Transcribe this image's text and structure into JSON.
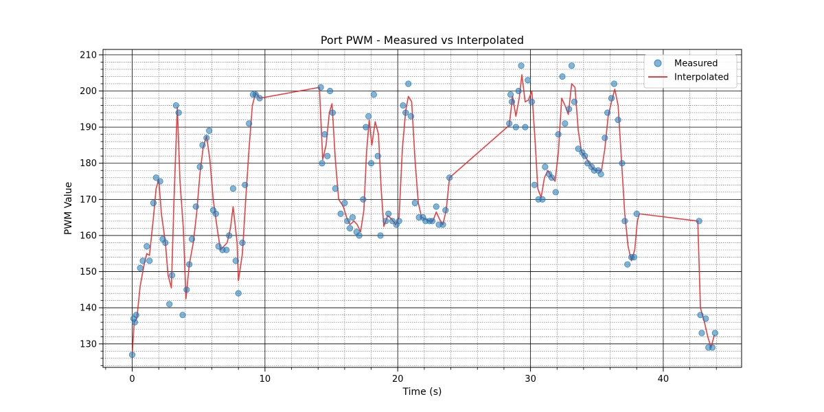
{
  "chart_data": {
    "type": "scatter+line",
    "title": "Port PWM - Measured vs Interpolated",
    "xlabel": "Time (s)",
    "ylabel": "PWM Value",
    "xlim": [
      -2.2,
      45.9
    ],
    "ylim": [
      123.5,
      211.5
    ],
    "xticks": [
      0,
      10,
      20,
      30,
      40
    ],
    "yticks": [
      130,
      140,
      150,
      160,
      170,
      180,
      190,
      200,
      210
    ],
    "x_minor_step": 2,
    "y_minor_step": 2,
    "grid": true,
    "legend_position": "top-right",
    "colors": {
      "measured": "#1f77b4",
      "interpolated": "#e8292b"
    },
    "series": [
      {
        "name": "Measured",
        "kind": "scatter",
        "points": [
          [
            0.0,
            127
          ],
          [
            0.1,
            137
          ],
          [
            0.2,
            136
          ],
          [
            0.3,
            138
          ],
          [
            0.6,
            151
          ],
          [
            0.8,
            153
          ],
          [
            1.1,
            157
          ],
          [
            1.3,
            153
          ],
          [
            1.6,
            169
          ],
          [
            1.8,
            176
          ],
          [
            2.1,
            175
          ],
          [
            2.3,
            159
          ],
          [
            2.5,
            158
          ],
          [
            2.8,
            141
          ],
          [
            3.0,
            149
          ],
          [
            3.3,
            196
          ],
          [
            3.5,
            194
          ],
          [
            3.8,
            138
          ],
          [
            4.1,
            145
          ],
          [
            4.3,
            152
          ],
          [
            4.5,
            159
          ],
          [
            4.8,
            168
          ],
          [
            5.1,
            179
          ],
          [
            5.3,
            185
          ],
          [
            5.6,
            187
          ],
          [
            5.8,
            189
          ],
          [
            6.1,
            167
          ],
          [
            6.3,
            166
          ],
          [
            6.5,
            157
          ],
          [
            6.8,
            156
          ],
          [
            7.1,
            156
          ],
          [
            7.3,
            160
          ],
          [
            7.6,
            173
          ],
          [
            7.8,
            153
          ],
          [
            8.0,
            144
          ],
          [
            8.3,
            158
          ],
          [
            8.5,
            174
          ],
          [
            8.8,
            191
          ],
          [
            9.1,
            199
          ],
          [
            9.3,
            199
          ],
          [
            9.6,
            198
          ],
          [
            14.2,
            201
          ],
          [
            14.3,
            180
          ],
          [
            14.5,
            188
          ],
          [
            14.7,
            182
          ],
          [
            14.9,
            200
          ],
          [
            15.1,
            194
          ],
          [
            15.3,
            173
          ],
          [
            15.7,
            166
          ],
          [
            16.0,
            169
          ],
          [
            16.2,
            164
          ],
          [
            16.4,
            162
          ],
          [
            16.6,
            165
          ],
          [
            16.9,
            161
          ],
          [
            17.1,
            160
          ],
          [
            17.4,
            170
          ],
          [
            17.6,
            190
          ],
          [
            17.8,
            193
          ],
          [
            18.0,
            180
          ],
          [
            18.2,
            199
          ],
          [
            18.5,
            182
          ],
          [
            18.7,
            160
          ],
          [
            19.1,
            164
          ],
          [
            19.3,
            166
          ],
          [
            19.6,
            164
          ],
          [
            19.9,
            163
          ],
          [
            20.1,
            164
          ],
          [
            20.4,
            196
          ],
          [
            20.6,
            194
          ],
          [
            20.8,
            202
          ],
          [
            21.0,
            193
          ],
          [
            21.3,
            169
          ],
          [
            21.6,
            165
          ],
          [
            21.9,
            165
          ],
          [
            22.1,
            164
          ],
          [
            22.4,
            164
          ],
          [
            22.6,
            164
          ],
          [
            22.9,
            168
          ],
          [
            23.1,
            163
          ],
          [
            23.4,
            163
          ],
          [
            23.6,
            167
          ],
          [
            23.9,
            176
          ],
          [
            28.4,
            191
          ],
          [
            28.5,
            199
          ],
          [
            28.6,
            197
          ],
          [
            28.9,
            190
          ],
          [
            29.1,
            200
          ],
          [
            29.3,
            207
          ],
          [
            29.6,
            190
          ],
          [
            29.8,
            203
          ],
          [
            30.1,
            197
          ],
          [
            30.3,
            174
          ],
          [
            30.6,
            170
          ],
          [
            30.9,
            170
          ],
          [
            31.1,
            179
          ],
          [
            31.4,
            177
          ],
          [
            31.6,
            176
          ],
          [
            31.9,
            172
          ],
          [
            32.1,
            188
          ],
          [
            32.4,
            204
          ],
          [
            32.6,
            191
          ],
          [
            32.9,
            195
          ],
          [
            33.1,
            207
          ],
          [
            33.3,
            197
          ],
          [
            33.6,
            184
          ],
          [
            33.9,
            183
          ],
          [
            34.1,
            182
          ],
          [
            34.3,
            180
          ],
          [
            34.6,
            179
          ],
          [
            34.8,
            178
          ],
          [
            35.1,
            178
          ],
          [
            35.3,
            177
          ],
          [
            35.6,
            187
          ],
          [
            35.8,
            194
          ],
          [
            36.1,
            198
          ],
          [
            36.3,
            202
          ],
          [
            36.6,
            192
          ],
          [
            36.9,
            180
          ],
          [
            37.1,
            164
          ],
          [
            37.3,
            152
          ],
          [
            37.6,
            154
          ],
          [
            37.8,
            154
          ],
          [
            38.0,
            166
          ],
          [
            42.7,
            164
          ],
          [
            42.8,
            138
          ],
          [
            42.9,
            133
          ],
          [
            43.2,
            137
          ],
          [
            43.4,
            129
          ],
          [
            43.7,
            129
          ],
          [
            43.9,
            133
          ]
        ]
      },
      {
        "name": "Interpolated",
        "kind": "line",
        "points": [
          [
            0.0,
            127
          ],
          [
            0.15,
            136
          ],
          [
            0.35,
            137
          ],
          [
            0.6,
            146
          ],
          [
            0.9,
            152
          ],
          [
            1.1,
            155
          ],
          [
            1.3,
            154.5
          ],
          [
            1.6,
            165
          ],
          [
            1.8,
            173
          ],
          [
            2.0,
            175.5
          ],
          [
            2.2,
            166
          ],
          [
            2.5,
            158
          ],
          [
            2.7,
            149
          ],
          [
            2.95,
            145.5
          ],
          [
            3.15,
            170
          ],
          [
            3.4,
            195.5
          ],
          [
            3.6,
            175
          ],
          [
            3.85,
            162
          ],
          [
            4.05,
            142.5
          ],
          [
            4.3,
            152
          ],
          [
            4.6,
            158
          ],
          [
            4.85,
            166
          ],
          [
            5.1,
            177
          ],
          [
            5.35,
            184.5
          ],
          [
            5.6,
            187.5
          ],
          [
            5.85,
            181
          ],
          [
            6.1,
            170
          ],
          [
            6.4,
            162
          ],
          [
            6.65,
            156
          ],
          [
            6.9,
            157
          ],
          [
            7.15,
            158
          ],
          [
            7.4,
            162
          ],
          [
            7.6,
            168
          ],
          [
            7.9,
            158
          ],
          [
            8.0,
            147.5
          ],
          [
            8.3,
            155
          ],
          [
            8.55,
            170
          ],
          [
            8.8,
            184
          ],
          [
            9.05,
            196
          ],
          [
            9.3,
            199.5
          ],
          [
            9.6,
            198
          ],
          [
            14.1,
            201
          ],
          [
            14.35,
            181
          ],
          [
            14.6,
            185
          ],
          [
            14.85,
            194
          ],
          [
            15.05,
            196.5
          ],
          [
            15.3,
            181
          ],
          [
            15.55,
            170
          ],
          [
            15.9,
            168
          ],
          [
            16.15,
            165
          ],
          [
            16.4,
            163
          ],
          [
            16.7,
            164
          ],
          [
            16.95,
            163
          ],
          [
            17.2,
            161
          ],
          [
            17.45,
            167
          ],
          [
            17.65,
            183
          ],
          [
            17.85,
            192
          ],
          [
            18.05,
            185
          ],
          [
            18.3,
            191.5
          ],
          [
            18.55,
            188
          ],
          [
            18.75,
            173
          ],
          [
            18.95,
            162.5
          ],
          [
            19.25,
            165.5
          ],
          [
            19.55,
            164.5
          ],
          [
            19.85,
            163
          ],
          [
            20.1,
            165
          ],
          [
            20.35,
            184
          ],
          [
            20.6,
            194.5
          ],
          [
            20.8,
            198.5
          ],
          [
            21.05,
            197
          ],
          [
            21.3,
            181
          ],
          [
            21.55,
            169
          ],
          [
            21.8,
            165
          ],
          [
            22.1,
            164.5
          ],
          [
            22.35,
            164
          ],
          [
            22.65,
            164
          ],
          [
            22.9,
            166.5
          ],
          [
            23.15,
            164.5
          ],
          [
            23.4,
            163
          ],
          [
            23.65,
            167
          ],
          [
            23.9,
            176
          ],
          [
            28.4,
            190.5
          ],
          [
            28.65,
            198.5
          ],
          [
            28.9,
            193
          ],
          [
            29.15,
            198
          ],
          [
            29.35,
            204.5
          ],
          [
            29.6,
            197
          ],
          [
            29.85,
            197.5
          ],
          [
            30.1,
            200
          ],
          [
            30.35,
            186
          ],
          [
            30.55,
            173
          ],
          [
            30.8,
            170.5
          ],
          [
            31.05,
            176
          ],
          [
            31.3,
            178
          ],
          [
            31.55,
            176.5
          ],
          [
            31.85,
            175
          ],
          [
            32.1,
            183
          ],
          [
            32.35,
            198
          ],
          [
            32.6,
            196
          ],
          [
            32.85,
            193.5
          ],
          [
            33.1,
            202
          ],
          [
            33.35,
            201
          ],
          [
            33.6,
            189
          ],
          [
            33.85,
            183
          ],
          [
            34.1,
            182
          ],
          [
            34.35,
            180.5
          ],
          [
            34.6,
            179
          ],
          [
            34.85,
            178
          ],
          [
            35.1,
            178
          ],
          [
            35.35,
            178
          ],
          [
            35.6,
            184
          ],
          [
            35.85,
            193
          ],
          [
            36.1,
            197
          ],
          [
            36.35,
            200.5
          ],
          [
            36.6,
            196
          ],
          [
            36.85,
            181
          ],
          [
            37.1,
            166
          ],
          [
            37.35,
            157
          ],
          [
            37.6,
            153
          ],
          [
            37.85,
            156
          ],
          [
            38.05,
            164
          ],
          [
            38.2,
            166
          ],
          [
            42.6,
            164
          ],
          [
            42.8,
            140
          ],
          [
            43.1,
            136
          ],
          [
            43.35,
            132
          ],
          [
            43.6,
            129
          ],
          [
            43.85,
            132.5
          ]
        ]
      }
    ]
  }
}
